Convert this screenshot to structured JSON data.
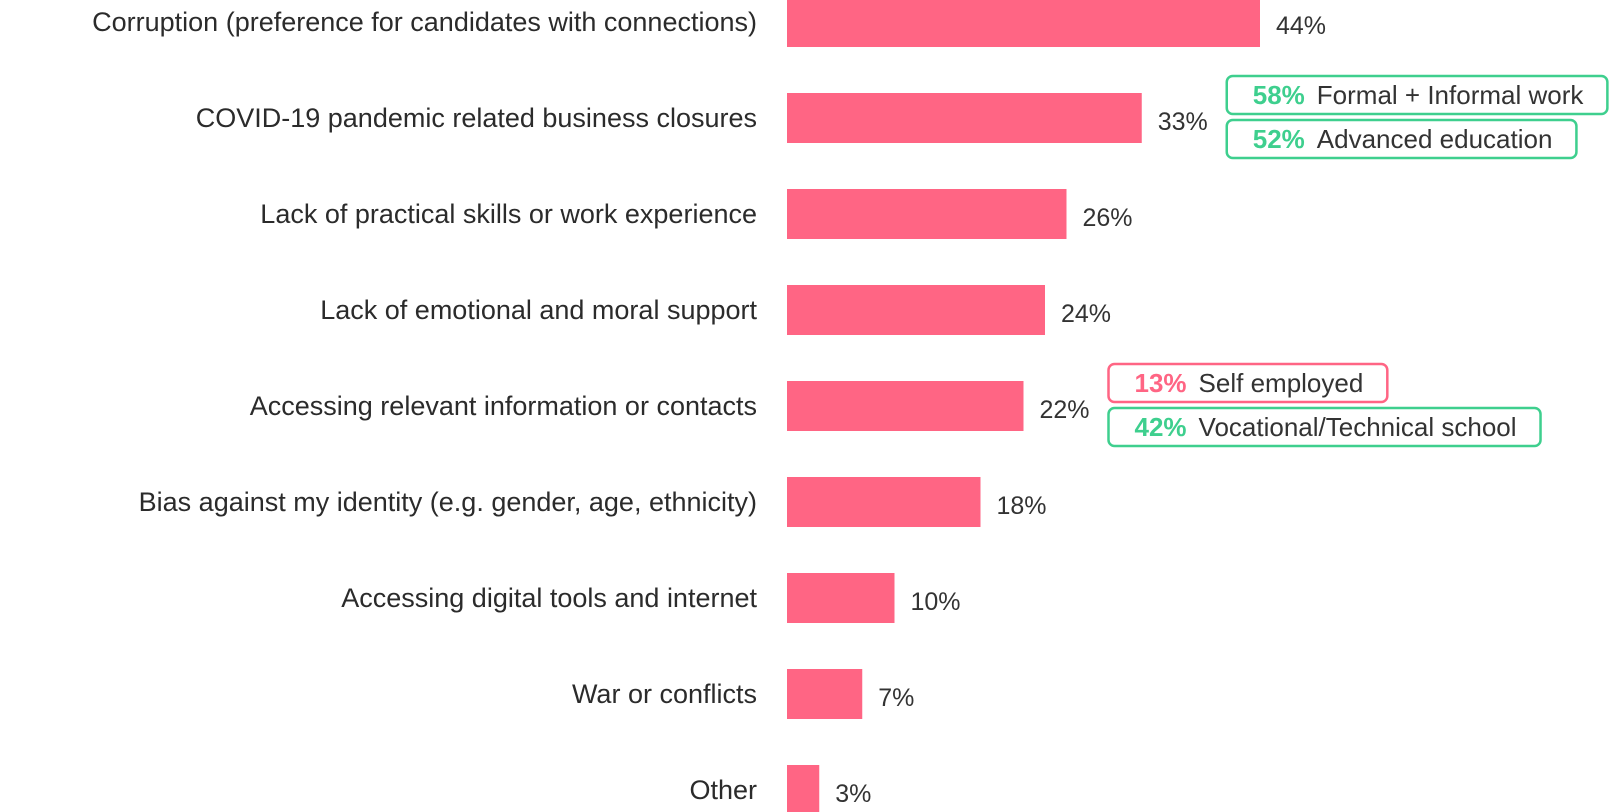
{
  "chart_data": {
    "type": "bar",
    "orientation": "horizontal",
    "categories": [
      "Corruption (preference for candidates with connections)",
      "COVID-19 pandemic related business closures",
      "Lack of practical skills or work experience",
      "Lack of emotional and moral support",
      "Accessing relevant information or contacts",
      "Bias against my identity (e.g. gender, age, ethnicity)",
      "Accessing digital tools and internet",
      "War or conflicts",
      "Other"
    ],
    "values": [
      44,
      33,
      26,
      24,
      22,
      18,
      10,
      7,
      3
    ],
    "value_labels": [
      "44%",
      "33%",
      "26%",
      "24%",
      "22%",
      "18%",
      "10%",
      "7%",
      "3%"
    ],
    "value_unit": "%",
    "xlim": [
      0,
      100
    ],
    "grid": false,
    "legend": "none",
    "bar_color": "#ff6584",
    "annotations": [
      {
        "category": "COVID-19 pandemic related business closures",
        "items": [
          {
            "value": "58%",
            "label": "Formal + Informal work",
            "color": "#3ecf8e"
          },
          {
            "value": "52%",
            "label": "Advanced education",
            "color": "#3ecf8e"
          }
        ]
      },
      {
        "category": "Accessing relevant information or contacts",
        "items": [
          {
            "value": "13%",
            "label": "Self employed",
            "color": "#ff6584"
          },
          {
            "value": "42%",
            "label": "Vocational/Technical school",
            "color": "#3ecf8e"
          }
        ]
      }
    ]
  }
}
